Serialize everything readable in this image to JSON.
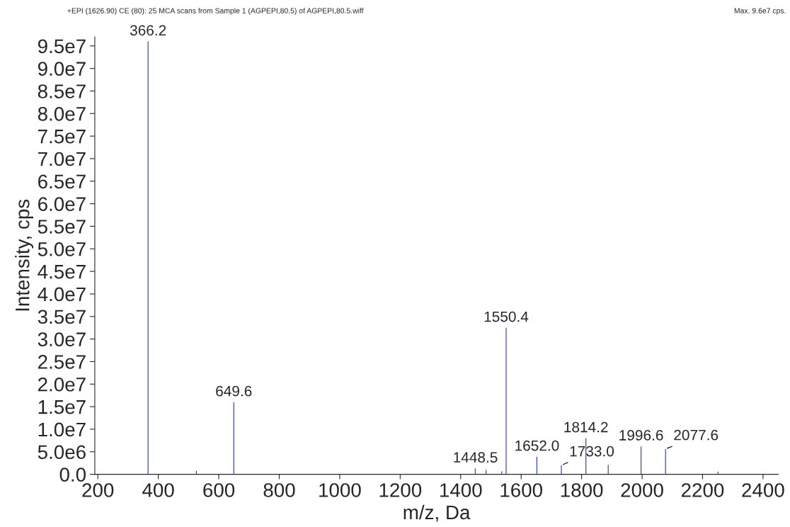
{
  "chart_data": {
    "type": "bar",
    "title": "+EPI (1626.90) CE (80): 25 MCA scans from Sample 1 (AGPEPI,80.5) of AGPEPI,80.5.wiff",
    "xlabel": "m/z, Da",
    "ylabel": "Intensity, cps",
    "annotations": [
      "Max. 9.6e7 cps.",
      {
        "text": "366.2",
        "x": 366.2,
        "y": 96000000
      },
      {
        "text": "649.6",
        "x": 649.6,
        "y": 16000000
      },
      {
        "text": "1448.5",
        "x": 1448.5,
        "y": 1300000
      },
      {
        "text": "1550.4",
        "x": 1550.4,
        "y": 32500000
      },
      {
        "text": "1652.0",
        "x": 1652.0,
        "y": 3900000
      },
      {
        "text": "1733.0",
        "x": 1733.0,
        "y": 2000000
      },
      {
        "text": "1814.2",
        "x": 1814.2,
        "y": 8000000
      },
      {
        "text": "1996.6",
        "x": 1996.6,
        "y": 6200000
      },
      {
        "text": "2077.6",
        "x": 2077.6,
        "y": 5600000
      }
    ],
    "x": [
      366.2,
      432,
      526,
      649.6,
      992,
      1448.5,
      1484,
      1536,
      1550.4,
      1652.0,
      1733.0,
      1814.2,
      1888,
      1996.6,
      2077.6,
      2251
    ],
    "series": [
      {
        "color": "#4050b0",
        "values": [
          96000000,
          null,
          800000,
          16000000,
          null,
          1300000,
          1000000,
          700000,
          32500000,
          3900000,
          2000000,
          8000000,
          2100000,
          6200000,
          5600000,
          600000
        ]
      }
    ],
    "xlim": [
      190,
      2450
    ],
    "ylim": [
      0,
      97000000
    ],
    "xticks": [
      200,
      400,
      600,
      800,
      1000,
      1200,
      1400,
      1600,
      1800,
      2000,
      2200,
      2400
    ],
    "yticks": [
      {
        "value": 0,
        "label": "0.0"
      },
      {
        "value": 5000000,
        "label": "5.0e6"
      },
      {
        "value": 10000000,
        "label": "1.0e7"
      },
      {
        "value": 15000000,
        "label": "1.5e7"
      },
      {
        "value": 20000000,
        "label": "2.0e7"
      },
      {
        "value": 25000000,
        "label": "2.5e7"
      },
      {
        "value": 30000000,
        "label": "3.0e7"
      },
      {
        "value": 35000000,
        "label": "3.5e7"
      },
      {
        "value": 40000000,
        "label": "4.0e7"
      },
      {
        "value": 45000000,
        "label": "4.5e7"
      },
      {
        "value": 50000000,
        "label": "5.0e7"
      },
      {
        "value": 55000000,
        "label": "5.5e7"
      },
      {
        "value": 60000000,
        "label": "6.0e7"
      },
      {
        "value": 65000000,
        "label": "6.5e7"
      },
      {
        "value": 70000000,
        "label": "7.0e7"
      },
      {
        "value": 75000000,
        "label": "7.5e7"
      },
      {
        "value": 80000000,
        "label": "8.0e7"
      },
      {
        "value": 85000000,
        "label": "8.5e7"
      },
      {
        "value": 90000000,
        "label": "9.0e7"
      },
      {
        "value": 95000000,
        "label": "9.5e7"
      }
    ],
    "grid": false,
    "legend": false
  }
}
